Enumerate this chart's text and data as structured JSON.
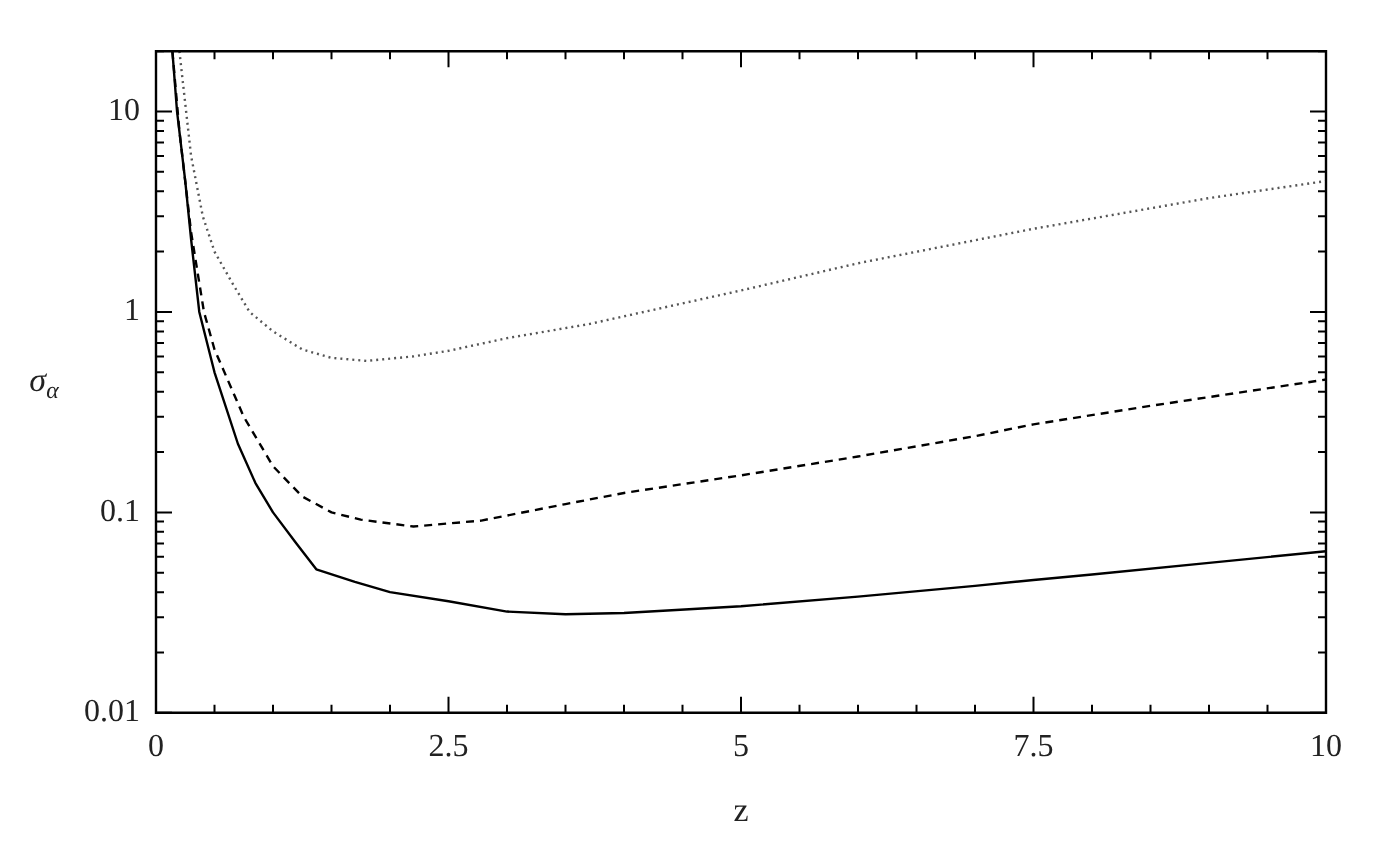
{
  "chart_data": {
    "type": "line",
    "xlabel": "z",
    "ylabel": "σ$_{α}$",
    "log": "y",
    "grid": false,
    "legend": false,
    "marker": "none",
    "xlim": [
      0,
      10
    ],
    "ylim": [
      0.01,
      20
    ],
    "xticks": [
      0,
      {
        "value": 0.5,
        "label": null
      },
      {
        "value": 1,
        "label": null
      },
      {
        "value": 1.5,
        "label": null
      },
      {
        "value": 2,
        "label": null
      },
      2.5,
      {
        "value": 3,
        "label": null
      },
      {
        "value": 3.5,
        "label": null
      },
      {
        "value": 4,
        "label": null
      },
      {
        "value": 4.5,
        "label": null
      },
      5,
      {
        "value": 5.5,
        "label": null
      },
      {
        "value": 6,
        "label": null
      },
      {
        "value": 6.5,
        "label": null
      },
      {
        "value": 7,
        "label": null
      },
      7.5,
      {
        "value": 8,
        "label": null
      },
      {
        "value": 8.5,
        "label": null
      },
      {
        "value": 9,
        "label": null
      },
      {
        "value": 9.5,
        "label": null
      },
      10
    ],
    "yticks": [
      0.01,
      {
        "value": 0.02,
        "label": null
      },
      {
        "value": 0.03,
        "label": null
      },
      {
        "value": 0.04,
        "label": null
      },
      {
        "value": 0.05,
        "label": null
      },
      {
        "value": 0.06,
        "label": null
      },
      {
        "value": 0.07,
        "label": null
      },
      {
        "value": 0.08,
        "label": null
      },
      {
        "value": 0.09,
        "label": null
      },
      0.1,
      {
        "value": 0.2,
        "label": null
      },
      {
        "value": 0.3,
        "label": null
      },
      {
        "value": 0.4,
        "label": null
      },
      {
        "value": 0.5,
        "label": null
      },
      {
        "value": 0.6,
        "label": null
      },
      {
        "value": 0.7,
        "label": null
      },
      {
        "value": 0.8,
        "label": null
      },
      {
        "value": 0.9,
        "label": null
      },
      1,
      {
        "value": 2,
        "label": null
      },
      {
        "value": 3,
        "label": null
      },
      {
        "value": 4,
        "label": null
      },
      {
        "value": 5,
        "label": null
      },
      {
        "value": 6,
        "label": null
      },
      {
        "value": 7,
        "label": null
      },
      {
        "value": 8,
        "label": null
      },
      {
        "value": 9,
        "label": null
      },
      10,
      {
        "value": 20,
        "label": null
      }
    ],
    "series": [
      {
        "color": "#000000",
        "line_style": "solid",
        "x": [
          0.14,
          0.18,
          0.25,
          0.3,
          0.37,
          0.5,
          0.7,
          0.85,
          1.0,
          1.2,
          1.37,
          1.7,
          2.0,
          2.5,
          3,
          3.5,
          4,
          5,
          6,
          7,
          7.5,
          8,
          9,
          10
        ],
        "values": [
          20,
          10,
          4.5,
          2.3,
          1,
          0.5,
          0.22,
          0.14,
          0.1,
          0.07,
          0.052,
          0.045,
          0.04,
          0.036,
          0.032,
          0.031,
          0.0315,
          0.034,
          0.038,
          0.043,
          0.046,
          0.049,
          0.056,
          0.064
        ]
      },
      {
        "color": "#000000",
        "line_style": "dashed",
        "x": [
          0.14,
          0.2,
          0.3,
          0.41,
          0.5,
          0.75,
          1.0,
          1.25,
          1.5,
          1.75,
          2.2,
          2.78,
          3.5,
          4,
          5,
          6,
          7,
          7.5,
          8.5,
          10
        ],
        "values": [
          20,
          8,
          2.5,
          1,
          0.65,
          0.3,
          0.17,
          0.12,
          0.1,
          0.092,
          0.085,
          0.091,
          0.11,
          0.125,
          0.153,
          0.19,
          0.24,
          0.275,
          0.34,
          0.46
        ]
      },
      {
        "color": "#555555",
        "line_style": "dotted",
        "x": [
          0.2,
          0.3,
          0.4,
          0.5,
          0.65,
          0.8,
          1.0,
          1.25,
          1.5,
          1.8,
          2.2,
          2.5,
          3,
          3.7,
          5,
          6,
          7.5,
          9,
          10
        ],
        "values": [
          20,
          6,
          3,
          2,
          1.4,
          1,
          0.8,
          0.65,
          0.59,
          0.57,
          0.6,
          0.64,
          0.74,
          0.87,
          1.28,
          1.75,
          2.6,
          3.7,
          4.5
        ]
      }
    ]
  }
}
